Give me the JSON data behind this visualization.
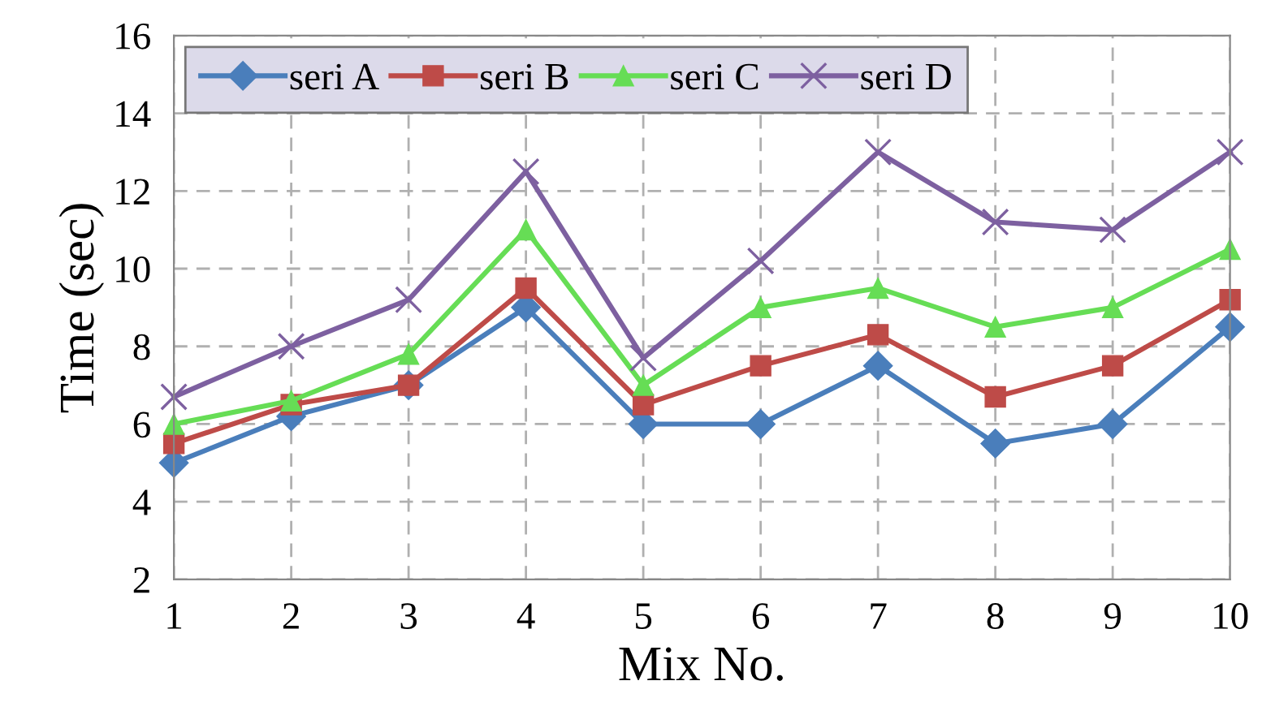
{
  "chart_data": {
    "type": "line",
    "xlabel": "Mix No.",
    "ylabel": "Time (sec)",
    "x": [
      1,
      2,
      3,
      4,
      5,
      6,
      7,
      8,
      9,
      10
    ],
    "xlim": [
      1,
      10
    ],
    "xticks": [
      1,
      2,
      3,
      4,
      5,
      6,
      7,
      8,
      9,
      10
    ],
    "ylim": [
      2,
      16
    ],
    "yticks": [
      2,
      4,
      6,
      8,
      10,
      12,
      14,
      16
    ],
    "grid": true,
    "legend": "top left",
    "series": [
      {
        "name": "seri A",
        "color": "#4a7ebb",
        "marker": "diamond",
        "values": [
          5,
          6.2,
          7,
          9,
          6,
          6,
          7.5,
          5.5,
          6,
          8.5
        ]
      },
      {
        "name": "seri B",
        "color": "#be4b48",
        "marker": "square",
        "values": [
          5.5,
          6.5,
          7,
          9.5,
          6.5,
          7.5,
          8.3,
          6.7,
          7.5,
          9.2
        ]
      },
      {
        "name": "seri C",
        "color": "#66dd55",
        "marker": "triangle",
        "values": [
          6,
          6.6,
          7.8,
          11,
          7,
          9,
          9.5,
          8.5,
          9,
          10.5
        ]
      },
      {
        "name": "seri D",
        "color": "#7d60a0",
        "marker": "cross",
        "values": [
          6.7,
          8,
          9.2,
          12.5,
          7.7,
          10.2,
          13,
          11.2,
          11,
          13
        ]
      }
    ]
  }
}
